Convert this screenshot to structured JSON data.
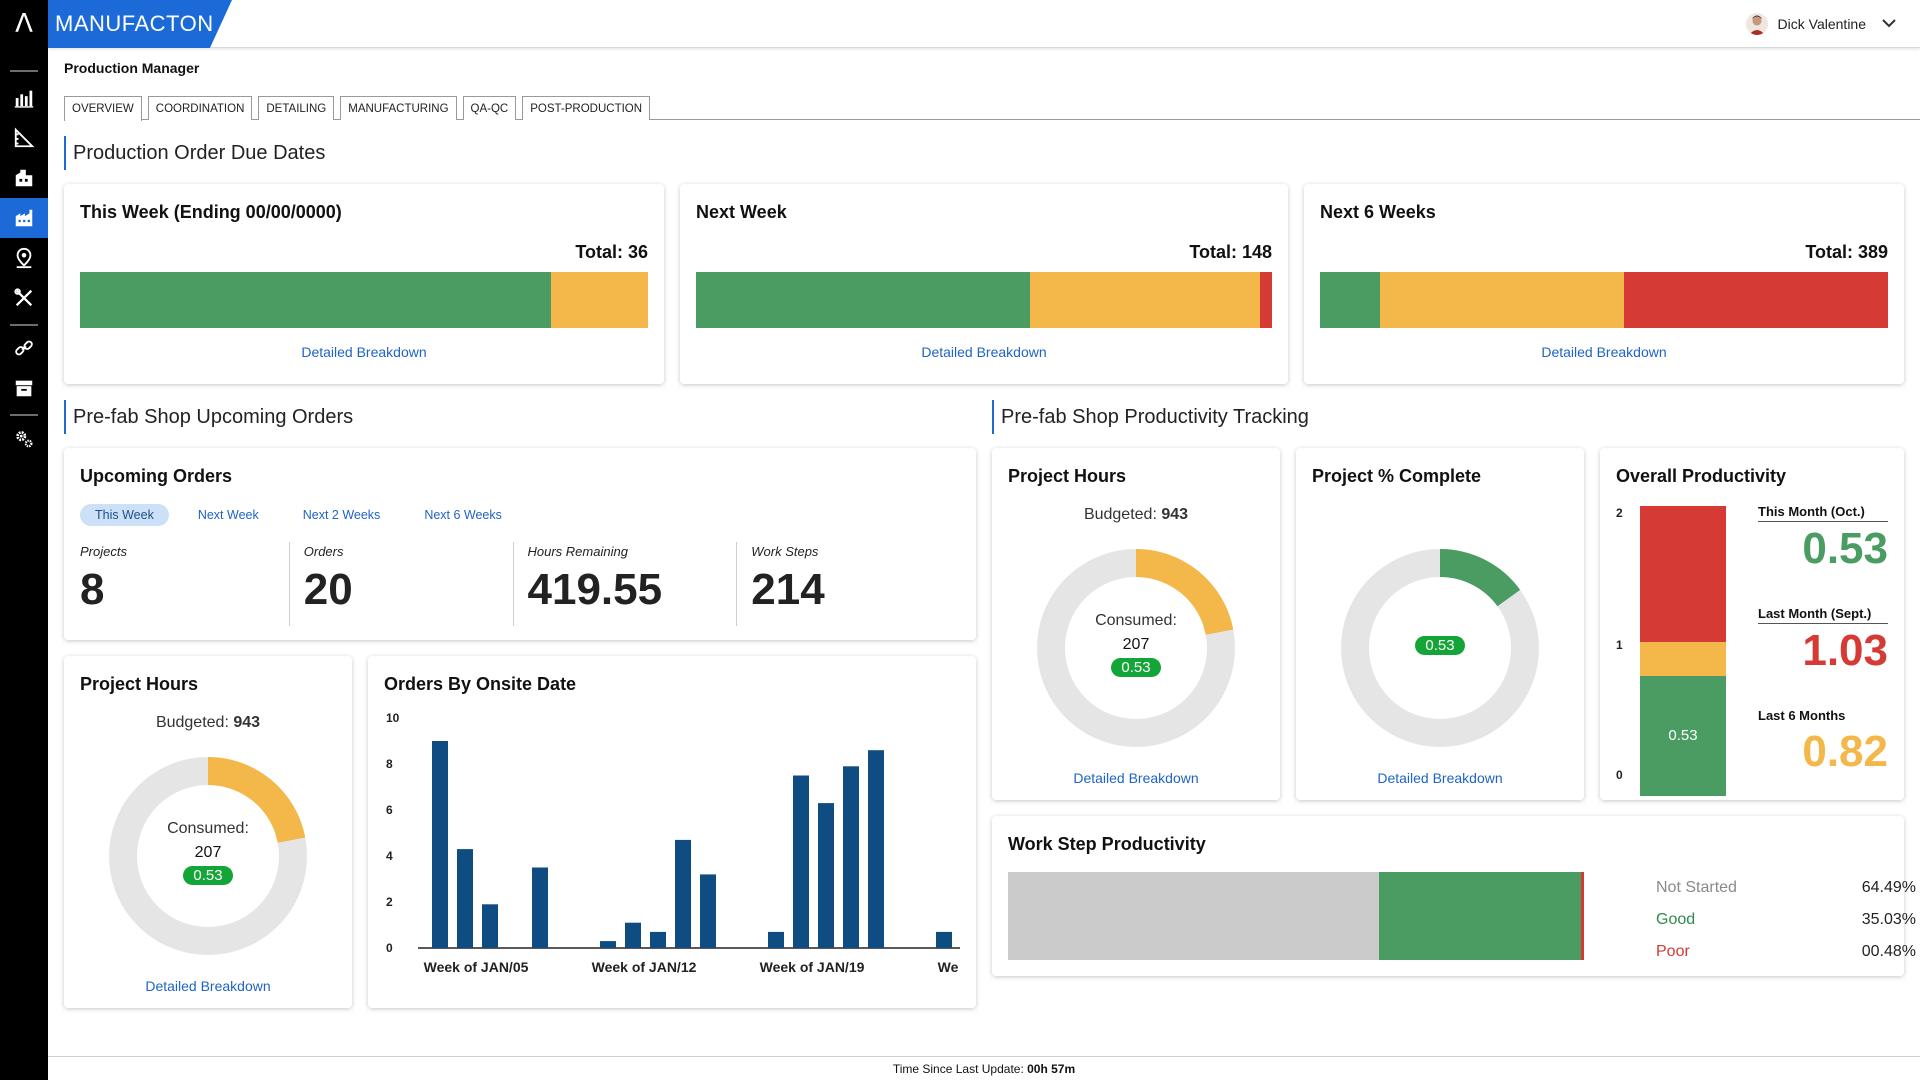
{
  "app": {
    "brand": "MANUFACTON",
    "logo_glyph": "Λ"
  },
  "user": {
    "name": "Dick Valentine"
  },
  "page": {
    "title": "Production Manager"
  },
  "tabs": [
    "OVERVIEW",
    "COORDINATION",
    "DETAILING",
    "MANUFACTURING",
    "QA-QC",
    "POST-PRODUCTION"
  ],
  "colors": {
    "accent": "#1c6ad8",
    "good": "#4a9c63",
    "warning": "#f4b74a",
    "poor": "#d53a35",
    "bars": "#0f4c81",
    "badge": "#13a538"
  },
  "sections": {
    "due_dates": "Production Order Due Dates",
    "upcoming": "Pre-fab Shop Upcoming Orders",
    "productivity": "Pre-fab Shop Productivity Tracking"
  },
  "due_cards": [
    {
      "title": "This Week (Ending 00/00/0000)",
      "total": "Total: 36",
      "link": "Detailed Breakdown",
      "segments": [
        0.83,
        0.17,
        0.0
      ]
    },
    {
      "title": "Next Week",
      "total": "Total: 148",
      "link": "Detailed Breakdown",
      "segments": [
        0.58,
        0.4,
        0.02
      ]
    },
    {
      "title": "Next 6 Weeks",
      "total": "Total: 389",
      "link": "Detailed Breakdown",
      "segments": [
        0.105,
        0.43,
        0.465
      ]
    }
  ],
  "upcoming_orders": {
    "title": "Upcoming Orders",
    "filters": [
      "This Week",
      "Next Week",
      "Next 2 Weeks",
      "Next 6 Weeks"
    ],
    "stats": [
      {
        "label": "Projects",
        "value": "8"
      },
      {
        "label": "Orders",
        "value": "20"
      },
      {
        "label": "Hours Remaining",
        "value": "419.55"
      },
      {
        "label": "Work Steps",
        "value": "214"
      }
    ]
  },
  "project_hours_small": {
    "title": "Project Hours",
    "budget_label": "Budgeted:",
    "budget_value": "943",
    "consumed_label": "Consumed:",
    "consumed_value": "207",
    "ratio": "0.53",
    "fraction": 0.22,
    "link": "Detailed Breakdown"
  },
  "orders_chart": {
    "title": "Orders By Onsite Date",
    "chart_data": {
      "type": "bar",
      "yticks": [
        "10",
        "8",
        "6",
        "4",
        "2",
        "0"
      ],
      "ylim": [
        0,
        10
      ],
      "groups": [
        {
          "label": "Week of JAN/05",
          "values": [
            9.0,
            4.3,
            1.9,
            0,
            3.5
          ]
        },
        {
          "label": "Week of JAN/12",
          "values": [
            0.3,
            1.1,
            0.7,
            4.7,
            3.2
          ]
        },
        {
          "label": "Week of JAN/19",
          "values": [
            0.7,
            7.5,
            6.3,
            7.9,
            8.6
          ]
        },
        {
          "label": "We",
          "values": [
            0.7
          ]
        }
      ]
    }
  },
  "project_hours": {
    "title": "Project Hours",
    "budget_label": "Budgeted:",
    "budget_value": "943",
    "consumed_label": "Consumed:",
    "consumed_value": "207",
    "ratio": "0.53",
    "fraction": 0.22,
    "link": "Detailed Breakdown"
  },
  "project_complete": {
    "title": "Project % Complete",
    "ratio": "0.53",
    "fraction": 0.15,
    "link": "Detailed Breakdown"
  },
  "overall_productivity": {
    "title": "Overall Productivity",
    "axis": [
      "2",
      "1",
      "0"
    ],
    "bar_label": "0.53",
    "segments": [
      0.53,
      0.15,
      0.6
    ],
    "metrics": [
      {
        "label": "This Month (Oct.)",
        "value": "0.53",
        "color": "#4a9c63"
      },
      {
        "label": "Last Month (Sept.)",
        "value": "1.03",
        "color": "#d53a35"
      },
      {
        "label": "Last 6 Months",
        "value": "0.82",
        "color": "#f4b74a"
      }
    ]
  },
  "work_step": {
    "title": "Work Step Productivity",
    "fractions": [
      0.6449,
      0.3503,
      0.0048
    ],
    "legend": [
      {
        "label": "Not Started",
        "value": "64.49%",
        "color": "#8a8a8a"
      },
      {
        "label": "Good",
        "value": "35.03%",
        "color": "#2f8a4c"
      },
      {
        "label": "Poor",
        "value": "00.48%",
        "color": "#d53a35"
      }
    ]
  },
  "footer": {
    "label": "Time Since Last Update:",
    "value": "00h 57m"
  }
}
